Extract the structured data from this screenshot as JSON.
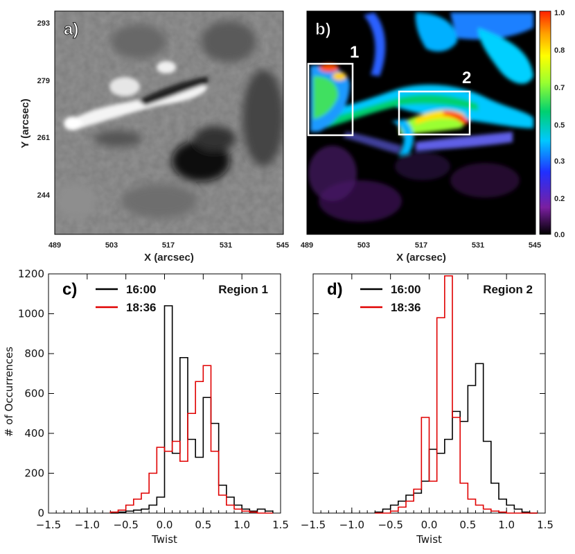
{
  "panel_a": {
    "label": "a)",
    "xlabel": "X (arcsec)",
    "ylabel": "Y (arcsec)",
    "xticks": [
      "489",
      "503",
      "517",
      "531",
      "545"
    ],
    "yticks": [
      "293",
      "279",
      "261",
      "244"
    ]
  },
  "panel_b": {
    "label": "b)",
    "xlabel": "X (arcsec)",
    "xticks": [
      "489",
      "503",
      "517",
      "531",
      "545"
    ],
    "box_labels": [
      "1",
      "2"
    ],
    "colorbar": {
      "ticks": [
        "1.0",
        "0.8",
        "0.7",
        "0.5",
        "0.3",
        "0.2",
        "0.0"
      ],
      "colors": [
        "#000000",
        "#7a1fa0",
        "#2030ff",
        "#00c8ff",
        "#00d070",
        "#9aff30",
        "#ffff00",
        "#ffa000",
        "#ff2000"
      ]
    }
  },
  "chart_data": [
    {
      "type": "histogram",
      "panel": "c)",
      "region": "Region 1",
      "xlabel": "Twist",
      "ylabel": "# of Occurrences",
      "xlim": [
        -1.5,
        1.5
      ],
      "ylim": [
        0,
        1200
      ],
      "xticks": [
        "−1.5",
        "−1.0",
        "−0.5",
        "0.0",
        "0.5",
        "1.0",
        "1.5"
      ],
      "yticks": [
        "0",
        "200",
        "400",
        "600",
        "800",
        "1000",
        "1200"
      ],
      "bin_edges": [
        -0.7,
        -0.6,
        -0.5,
        -0.4,
        -0.3,
        -0.2,
        -0.1,
        0.0,
        0.1,
        0.2,
        0.3,
        0.4,
        0.5,
        0.6,
        0.7,
        0.8,
        0.9,
        1.0,
        1.1,
        1.2,
        1.3,
        1.4
      ],
      "series": [
        {
          "name": "16:00",
          "color": "#000000",
          "values": [
            0,
            5,
            10,
            15,
            20,
            40,
            80,
            1040,
            300,
            780,
            370,
            280,
            580,
            450,
            140,
            80,
            40,
            20,
            10,
            20,
            10
          ]
        },
        {
          "name": "18:36",
          "color": "#e00000",
          "values": [
            5,
            15,
            40,
            70,
            100,
            200,
            330,
            310,
            360,
            260,
            500,
            660,
            740,
            310,
            90,
            40,
            20,
            10,
            5,
            0,
            0
          ]
        }
      ]
    },
    {
      "type": "histogram",
      "panel": "d)",
      "region": "Region 2",
      "xlabel": "Twist",
      "ylabel": "",
      "xlim": [
        -1.5,
        1.5
      ],
      "ylim": [
        0,
        1200
      ],
      "xticks": [
        "−1.5",
        "−1.0",
        "−0.5",
        "0.0",
        "0.5",
        "1.0",
        "1.5"
      ],
      "yticks": [],
      "bin_edges": [
        -0.7,
        -0.6,
        -0.5,
        -0.4,
        -0.3,
        -0.2,
        -0.1,
        0.0,
        0.1,
        0.2,
        0.3,
        0.4,
        0.5,
        0.6,
        0.7,
        0.8,
        0.9,
        1.0,
        1.1,
        1.2,
        1.3,
        1.4
      ],
      "series": [
        {
          "name": "16:00",
          "color": "#000000",
          "values": [
            5,
            20,
            40,
            60,
            90,
            100,
            160,
            320,
            300,
            370,
            510,
            460,
            640,
            750,
            360,
            150,
            70,
            40,
            20,
            5,
            0
          ]
        },
        {
          "name": "18:36",
          "color": "#e00000",
          "values": [
            0,
            0,
            10,
            30,
            60,
            120,
            480,
            160,
            980,
            1190,
            480,
            150,
            70,
            40,
            20,
            10,
            5,
            0,
            0,
            0,
            0
          ]
        }
      ]
    }
  ]
}
